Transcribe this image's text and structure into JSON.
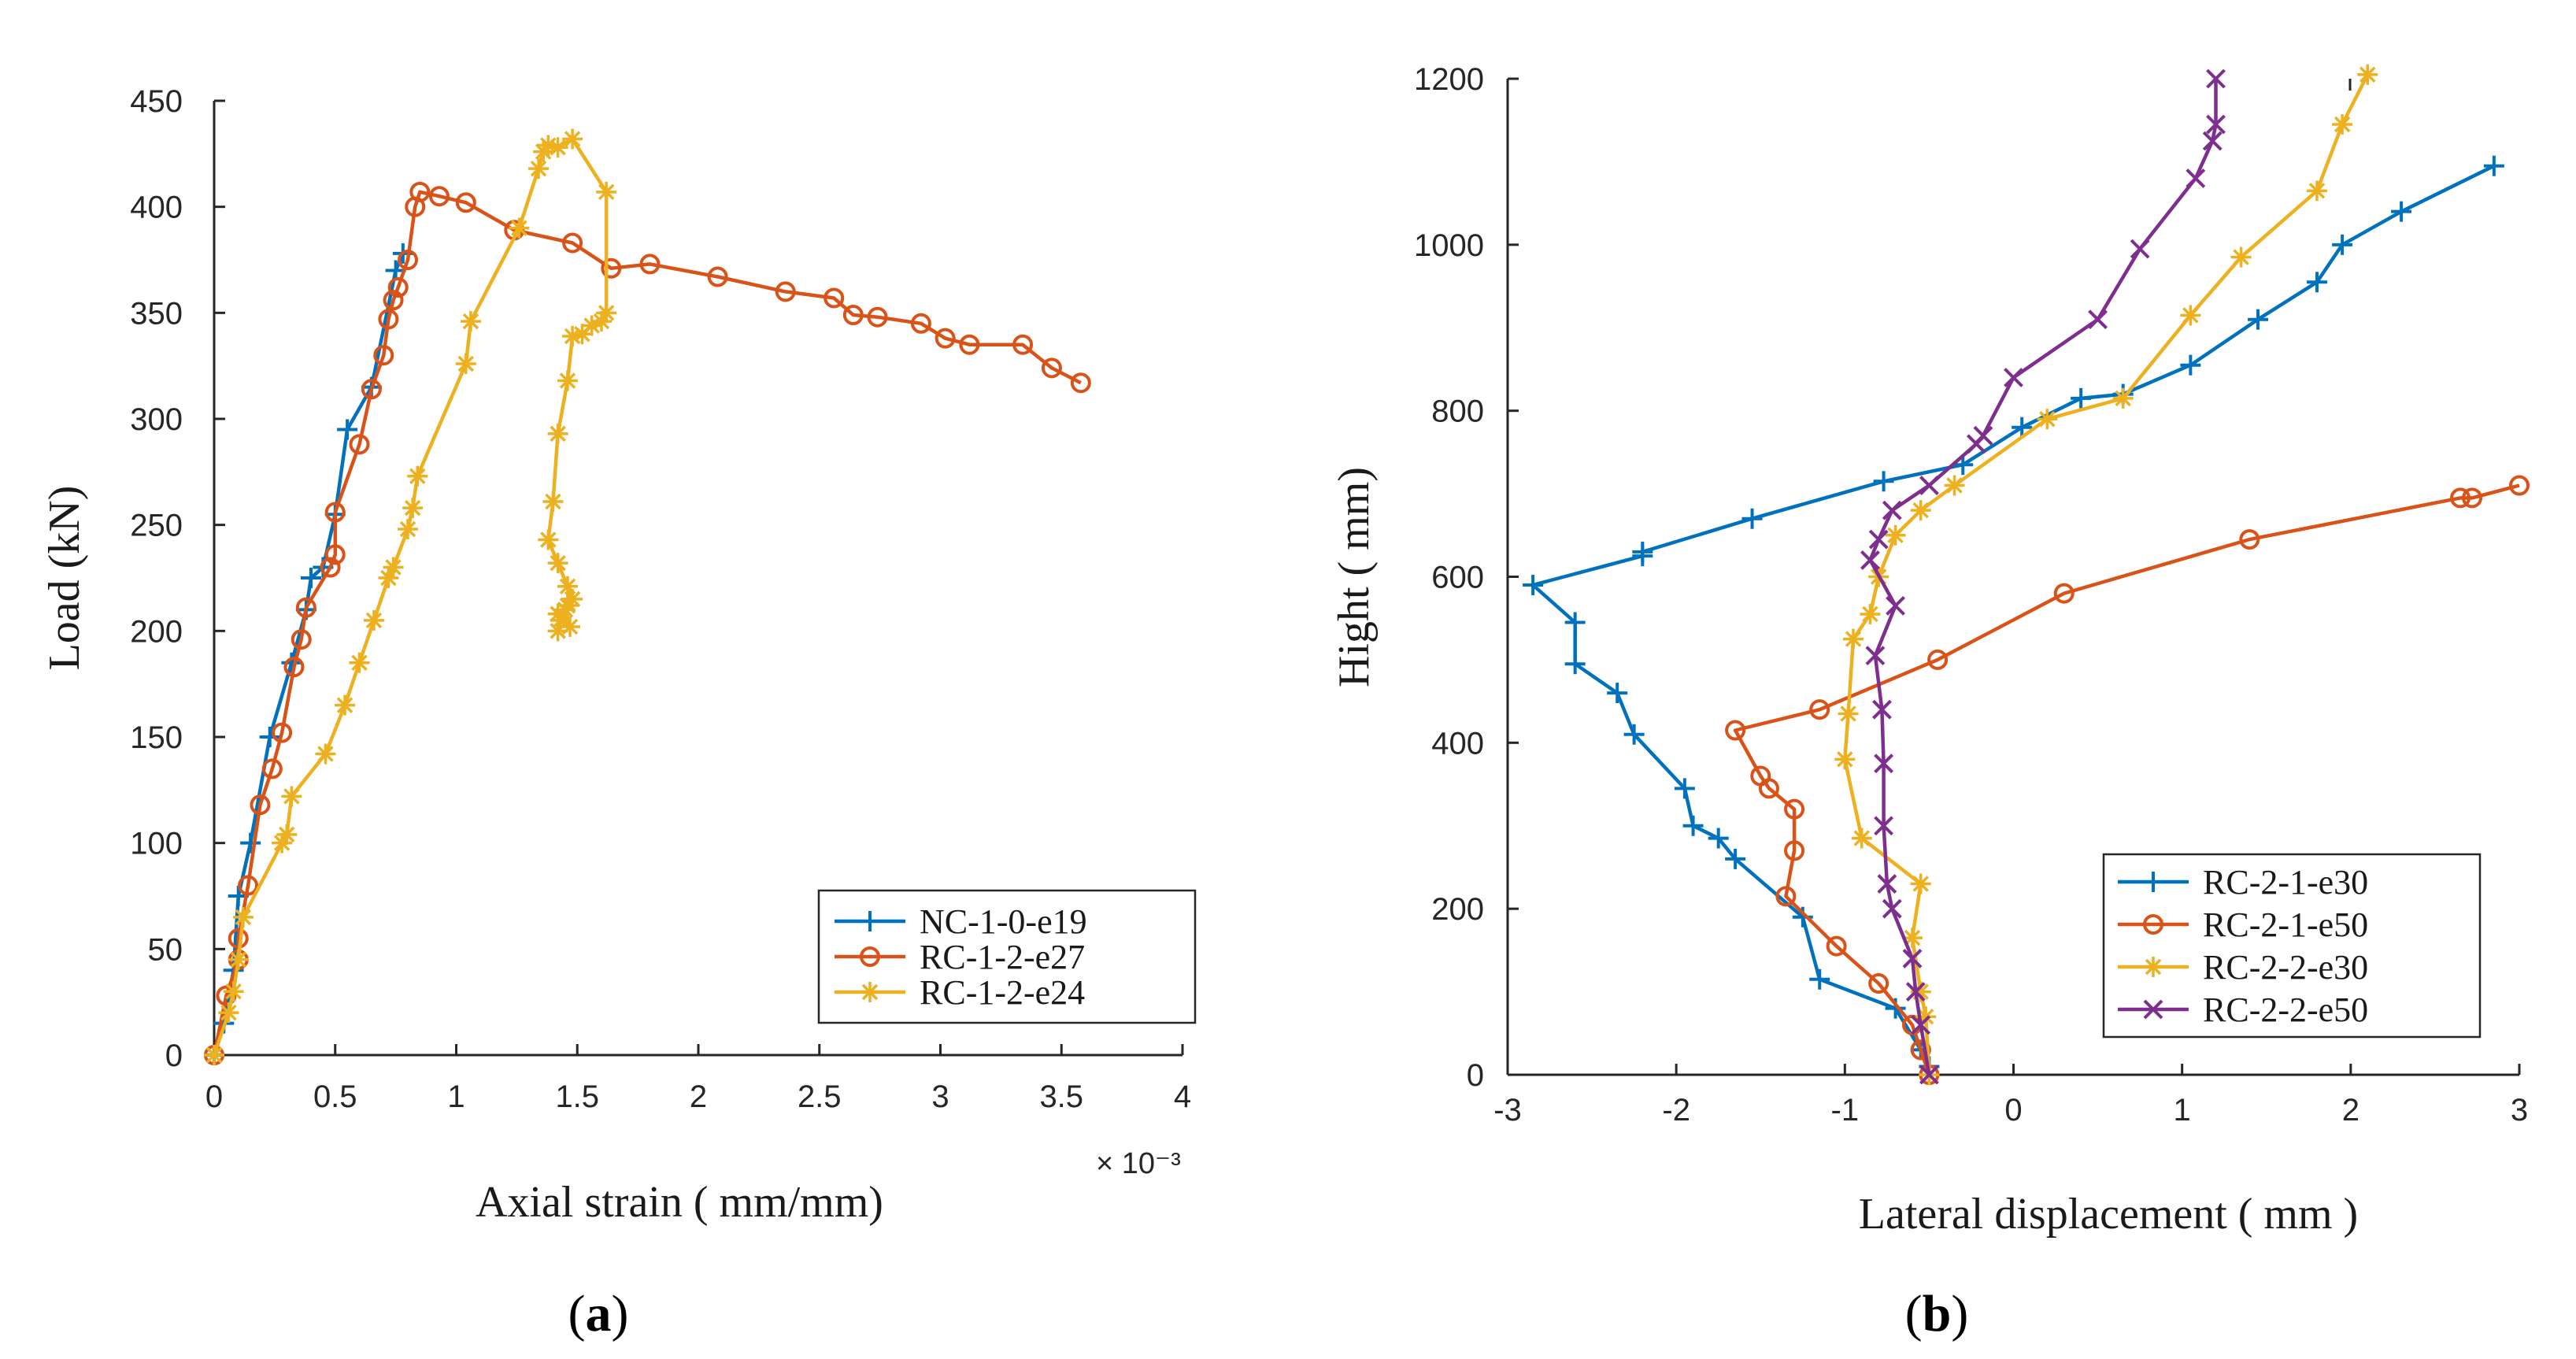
{
  "chart_data": [
    {
      "type": "line",
      "panel": "a",
      "caption_open": "(",
      "caption_letter": "a",
      "caption_close": ")",
      "title": "",
      "xlabel": "Axial strain ( mm/mm)",
      "ylabel": "Load (kN)",
      "x_multiplier": "× 10⁻³",
      "xlim": [
        0,
        4
      ],
      "ylim": [
        0,
        450
      ],
      "xticks": [
        0,
        0.5,
        1,
        1.5,
        2,
        2.5,
        3,
        3.5,
        4
      ],
      "xtick_labels": [
        "0",
        "0.5",
        "1",
        "1.5",
        "2",
        "2.5",
        "3",
        "3.5",
        "4"
      ],
      "yticks": [
        0,
        50,
        100,
        150,
        200,
        250,
        300,
        350,
        400,
        450
      ],
      "ytick_labels": [
        "0",
        "50",
        "100",
        "150",
        "200",
        "250",
        "300",
        "350",
        "400",
        "450"
      ],
      "grid": false,
      "legend_position": "bottom-right",
      "series": [
        {
          "name": "NC-1-0-e19",
          "color": "#0072BD",
          "marker": "plus",
          "x": [
            0,
            0.04,
            0.08,
            0.1,
            0.15,
            0.23,
            0.32,
            0.38,
            0.4,
            0.45,
            0.5,
            0.55,
            0.65,
            0.75,
            0.78
          ],
          "y": [
            0,
            15,
            40,
            75,
            100,
            150,
            185,
            210,
            225,
            230,
            255,
            295,
            315,
            370,
            378
          ]
        },
        {
          "name": "RC-1-2-e27",
          "color": "#D95319",
          "marker": "circle",
          "x": [
            0,
            0.05,
            0.1,
            0.1,
            0.14,
            0.19,
            0.24,
            0.28,
            0.33,
            0.36,
            0.38,
            0.48,
            0.5,
            0.5,
            0.6,
            0.65,
            0.7,
            0.72,
            0.74,
            0.76,
            0.8,
            0.83,
            0.85,
            0.93,
            1.04,
            1.24,
            1.48,
            1.64,
            1.8,
            2.08,
            2.36,
            2.56,
            2.64,
            2.74,
            2.92,
            3.02,
            3.12,
            3.34,
            3.46,
            3.58
          ],
          "y": [
            0,
            28,
            45,
            55,
            80,
            118,
            135,
            152,
            183,
            196,
            211,
            230,
            236,
            256,
            288,
            314,
            330,
            347,
            356,
            362,
            375,
            400,
            407,
            405,
            402,
            389,
            383,
            371,
            373,
            367,
            360,
            357,
            349,
            348,
            345,
            338,
            335,
            335,
            324,
            317
          ]
        },
        {
          "name": "RC-1-2-e24",
          "color": "#EDB120",
          "marker": "asterisk",
          "x": [
            0,
            0.06,
            0.08,
            0.1,
            0.12,
            0.28,
            0.3,
            0.32,
            0.46,
            0.54,
            0.6,
            0.66,
            0.72,
            0.74,
            0.8,
            0.82,
            0.84,
            1.04,
            1.06,
            1.26,
            1.34,
            1.36,
            1.38,
            1.42,
            1.48,
            1.62,
            1.62,
            1.6,
            1.56,
            1.52,
            1.48,
            1.46,
            1.42,
            1.4,
            1.38,
            1.42,
            1.46,
            1.48,
            1.46,
            1.42,
            1.43,
            1.47,
            1.45,
            1.42
          ],
          "y": [
            0,
            20,
            30,
            45,
            65,
            100,
            104,
            122,
            142,
            165,
            185,
            205,
            225,
            230,
            248,
            258,
            273,
            326,
            346,
            390,
            418,
            426,
            429,
            428,
            432,
            407,
            350,
            346,
            344,
            340,
            339,
            318,
            293,
            261,
            243,
            232,
            221,
            215,
            212,
            208,
            205,
            202,
            210,
            200
          ]
        }
      ]
    },
    {
      "type": "line",
      "panel": "b",
      "caption_open": "(",
      "caption_letter": "b",
      "caption_close": ")",
      "title": "",
      "xlabel": "Lateral displacement ( mm )",
      "ylabel": "Hight ( mm)",
      "xlim": [
        -3,
        3
      ],
      "ylim": [
        0,
        1200
      ],
      "xticks": [
        -3,
        -2,
        -1,
        0,
        1,
        2,
        3
      ],
      "xtick_labels": [
        "-3",
        "-2",
        "-1",
        "0",
        "1",
        "2",
        "3"
      ],
      "yticks": [
        0,
        200,
        400,
        600,
        800,
        1000,
        1200
      ],
      "ytick_labels": [
        "0",
        "200",
        "400",
        "600",
        "800",
        "1000",
        "1200"
      ],
      "grid": false,
      "legend_position": "bottom-right",
      "series": [
        {
          "name": "RC-2-1-e30",
          "color": "#0072BD",
          "marker": "plus",
          "x": [
            -0.5,
            -0.55,
            -0.7,
            -1.15,
            -1.25,
            -1.65,
            -1.75,
            -1.9,
            -1.95,
            -2.25,
            -2.35,
            -2.6,
            -2.6,
            -2.85,
            -2.2,
            -2.2,
            -1.55,
            -0.77,
            -0.3,
            0.05,
            0.4,
            0.65,
            1.05,
            1.45,
            1.8,
            1.95,
            2.3,
            2.85
          ],
          "y": [
            10,
            30,
            80,
            115,
            190,
            260,
            285,
            300,
            345,
            410,
            460,
            495,
            545,
            590,
            625,
            630,
            670,
            715,
            735,
            780,
            815,
            820,
            855,
            910,
            955,
            1000,
            1040,
            1095
          ]
        },
        {
          "name": "RC-2-1-e50",
          "color": "#D95319",
          "marker": "circle",
          "x": [
            -0.5,
            -0.55,
            -0.6,
            -0.8,
            -1.05,
            -1.35,
            -1.3,
            -1.3,
            -1.45,
            -1.5,
            -1.65,
            -1.15,
            -0.45,
            0.3,
            1.4,
            2.65,
            2.72,
            3.0
          ],
          "y": [
            0,
            30,
            60,
            110,
            155,
            215,
            270,
            320,
            345,
            360,
            415,
            440,
            500,
            580,
            645,
            695,
            695,
            710
          ]
        },
        {
          "name": "RC-2-2-e30",
          "color": "#EDB120",
          "marker": "asterisk",
          "x": [
            -0.5,
            -0.52,
            -0.55,
            -0.6,
            -0.55,
            -0.9,
            -1.0,
            -0.98,
            -0.95,
            -0.85,
            -0.8,
            -0.7,
            -0.55,
            -0.35,
            0.2,
            0.65,
            1.05,
            1.35,
            1.8,
            1.95,
            2.1
          ],
          "y": [
            0,
            70,
            100,
            165,
            230,
            285,
            380,
            435,
            525,
            555,
            600,
            650,
            680,
            710,
            790,
            815,
            915,
            985,
            1065,
            1145,
            1205
          ]
        },
        {
          "name": "RC-2-2-e50",
          "color": "#7E2F8E",
          "marker": "x",
          "x": [
            -0.5,
            -0.55,
            -0.58,
            -0.6,
            -0.72,
            -0.75,
            -0.77,
            -0.77,
            -0.78,
            -0.82,
            -0.7,
            -0.85,
            -0.8,
            -0.72,
            -0.5,
            -0.22,
            -0.18,
            0.0,
            0.5,
            0.75,
            1.08,
            1.18,
            1.2,
            1.2
          ],
          "y": [
            0,
            60,
            100,
            140,
            200,
            230,
            300,
            375,
            440,
            505,
            565,
            620,
            645,
            680,
            710,
            760,
            770,
            840,
            910,
            995,
            1080,
            1125,
            1145,
            1200
          ]
        }
      ]
    }
  ]
}
